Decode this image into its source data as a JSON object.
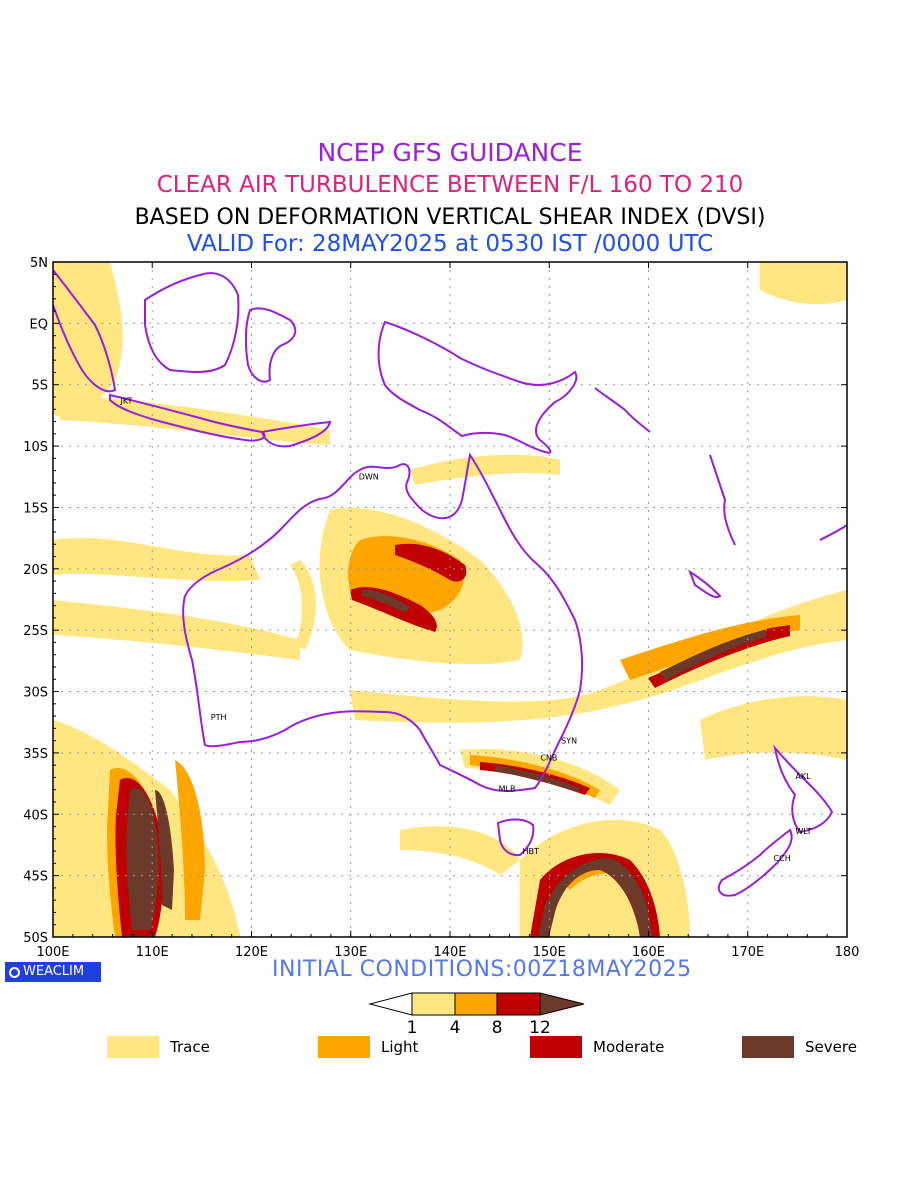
{
  "header": {
    "line1": "NCEP GFS GUIDANCE",
    "line2": "CLEAR AIR TURBULENCE BETWEEN F/L 160 TO 210",
    "line3": "BASED ON DEFORMATION VERTICAL SHEAR INDEX (DVSI)",
    "line4": "VALID For: 28MAY2025 at 0530 IST /0000 UTC"
  },
  "map": {
    "lat_labels": [
      "5N",
      "EQ",
      "5S",
      "10S",
      "15S",
      "20S",
      "25S",
      "30S",
      "35S",
      "40S",
      "45S",
      "50S"
    ],
    "lon_labels": [
      "100E",
      "110E",
      "120E",
      "130E",
      "140E",
      "150E",
      "160E",
      "170E",
      "180"
    ],
    "cities": [
      {
        "name": "JKT",
        "lon": 106.8,
        "lat": -6.2
      },
      {
        "name": "DWN",
        "lon": 130.8,
        "lat": -12.4
      },
      {
        "name": "PTH",
        "lon": 115.9,
        "lat": -32.0
      },
      {
        "name": "SYN",
        "lon": 151.2,
        "lat": -33.9
      },
      {
        "name": "CNB",
        "lon": 149.1,
        "lat": -35.3
      },
      {
        "name": "MLB",
        "lon": 144.9,
        "lat": -37.8
      },
      {
        "name": "HBT",
        "lon": 147.3,
        "lat": -42.9
      },
      {
        "name": "AKL",
        "lon": 174.8,
        "lat": -36.8
      },
      {
        "name": "WLT",
        "lon": 174.8,
        "lat": -41.3
      },
      {
        "name": "CCH",
        "lon": 172.6,
        "lat": -43.5
      }
    ],
    "coast_color": "#9a1ed8",
    "fill_colors": {
      "trace": "#ffe680",
      "light": "#ffa500",
      "moderate": "#c00000",
      "severe": "#6b3a2a"
    }
  },
  "footer": {
    "logo_text": "WEACLIM",
    "initial_conditions": "INITIAL CONDITIONS:00Z18MAY2025"
  },
  "colorbar": {
    "ticks": [
      "1",
      "4",
      "8",
      "12"
    ],
    "colors": [
      "#ffe680",
      "#ffa500",
      "#c00000",
      "#6b3a2a"
    ]
  },
  "legend": [
    {
      "label": "Trace",
      "color": "#ffe680"
    },
    {
      "label": "Light",
      "color": "#ffa500"
    },
    {
      "label": "Moderate",
      "color": "#c00000"
    },
    {
      "label": "Severe",
      "color": "#6b3a2a"
    }
  ]
}
